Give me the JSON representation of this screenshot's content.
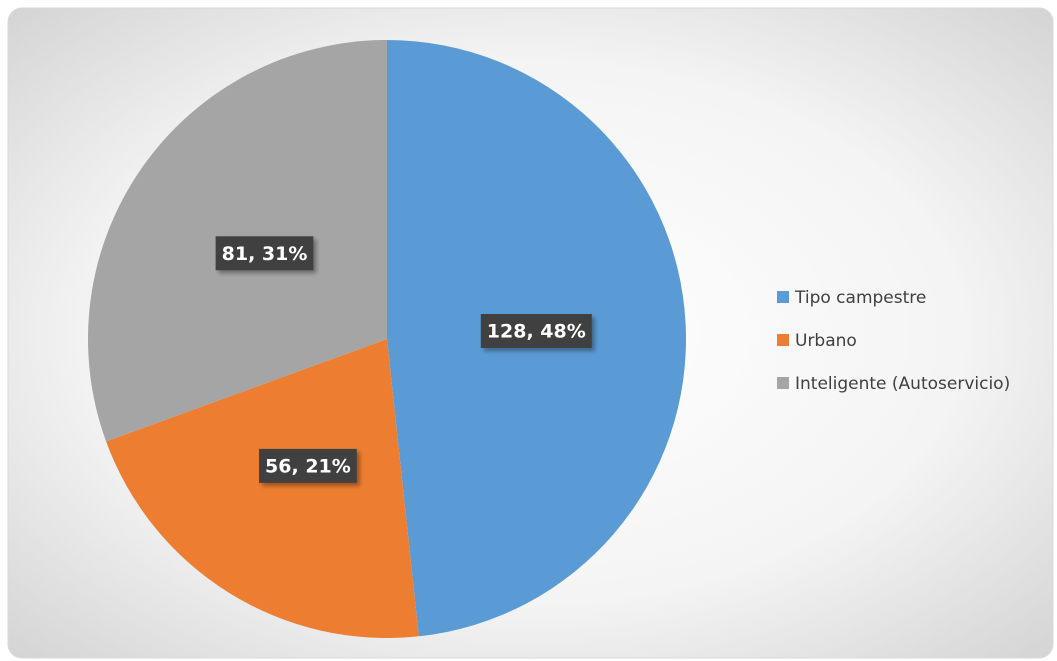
{
  "chart_data": {
    "type": "pie",
    "categories": [
      "Tipo campestre",
      "Urbano",
      "Inteligente (Autoservicio)"
    ],
    "values": [
      128,
      56,
      81
    ],
    "value_labels": [
      "128, 48%",
      "56, 21%",
      "81, 31%"
    ],
    "colors": [
      "#5b9bd5",
      "#ed7d31",
      "#a5a5a5"
    ],
    "legend": "right"
  }
}
